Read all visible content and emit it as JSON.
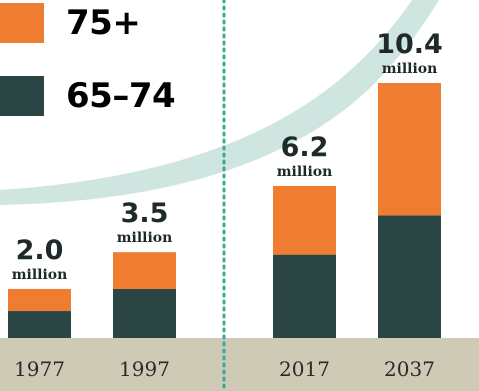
{
  "chart_data": {
    "type": "bar",
    "stacked": true,
    "categories": [
      "1977",
      "1997",
      "2017",
      "2037"
    ],
    "series": [
      {
        "name": "65–74",
        "values": [
          1.1,
          2.0,
          3.4,
          5.0
        ]
      },
      {
        "name": "75+",
        "values": [
          0.9,
          1.5,
          2.8,
          5.4
        ]
      }
    ],
    "totals": [
      "2.0",
      "3.5",
      "6.2",
      "10.4"
    ],
    "unit_label": "million",
    "ylim": [
      0,
      10.4
    ],
    "grid": false,
    "legend": "top-left",
    "colors": {
      "65–74": "#2b4544",
      "75+": "#ee7d31",
      "baseline_band": "#cfcab6",
      "arc": "#cfe6e0",
      "divider": "#3aa99a"
    }
  }
}
